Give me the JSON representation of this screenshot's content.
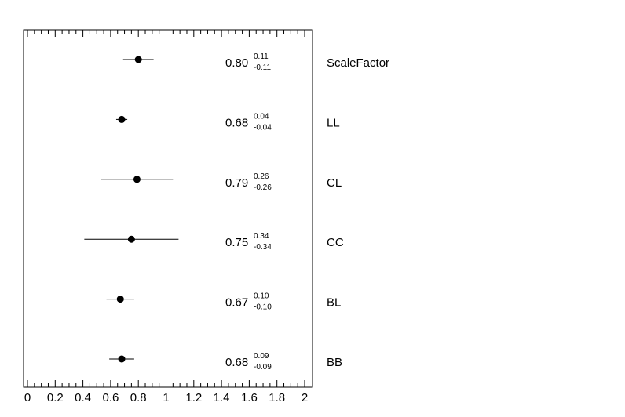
{
  "chart_data": {
    "type": "scatter",
    "title": "",
    "xlabel": "",
    "ylabel": "",
    "xlim": [
      0,
      2.05
    ],
    "x_ticks": [
      "0",
      "0.2",
      "0.4",
      "0.6",
      "0.8",
      "1",
      "1.2",
      "1.4",
      "1.6",
      "1.8",
      "2"
    ],
    "reference_line": 1,
    "grid": false,
    "points": [
      {
        "label": "ScaleFactor",
        "value": 0.8,
        "value_text": "0.80",
        "err_up": 0.11,
        "err_up_text": "0.11",
        "err_down": -0.11,
        "err_down_text": "-0.11"
      },
      {
        "label": "LL",
        "value": 0.68,
        "value_text": "0.68",
        "err_up": 0.04,
        "err_up_text": "0.04",
        "err_down": -0.04,
        "err_down_text": "-0.04"
      },
      {
        "label": "CL",
        "value": 0.79,
        "value_text": "0.79",
        "err_up": 0.26,
        "err_up_text": "0.26",
        "err_down": -0.26,
        "err_down_text": "-0.26"
      },
      {
        "label": "CC",
        "value": 0.75,
        "value_text": "0.75",
        "err_up": 0.34,
        "err_up_text": "0.34",
        "err_down": -0.34,
        "err_down_text": "-0.34"
      },
      {
        "label": "BL",
        "value": 0.67,
        "value_text": "0.67",
        "err_up": 0.1,
        "err_up_text": "0.10",
        "err_down": -0.1,
        "err_down_text": "-0.10"
      },
      {
        "label": "BB",
        "value": 0.68,
        "value_text": "0.68",
        "err_up": 0.09,
        "err_up_text": "0.09",
        "err_down": -0.09,
        "err_down_text": "-0.09"
      }
    ]
  }
}
